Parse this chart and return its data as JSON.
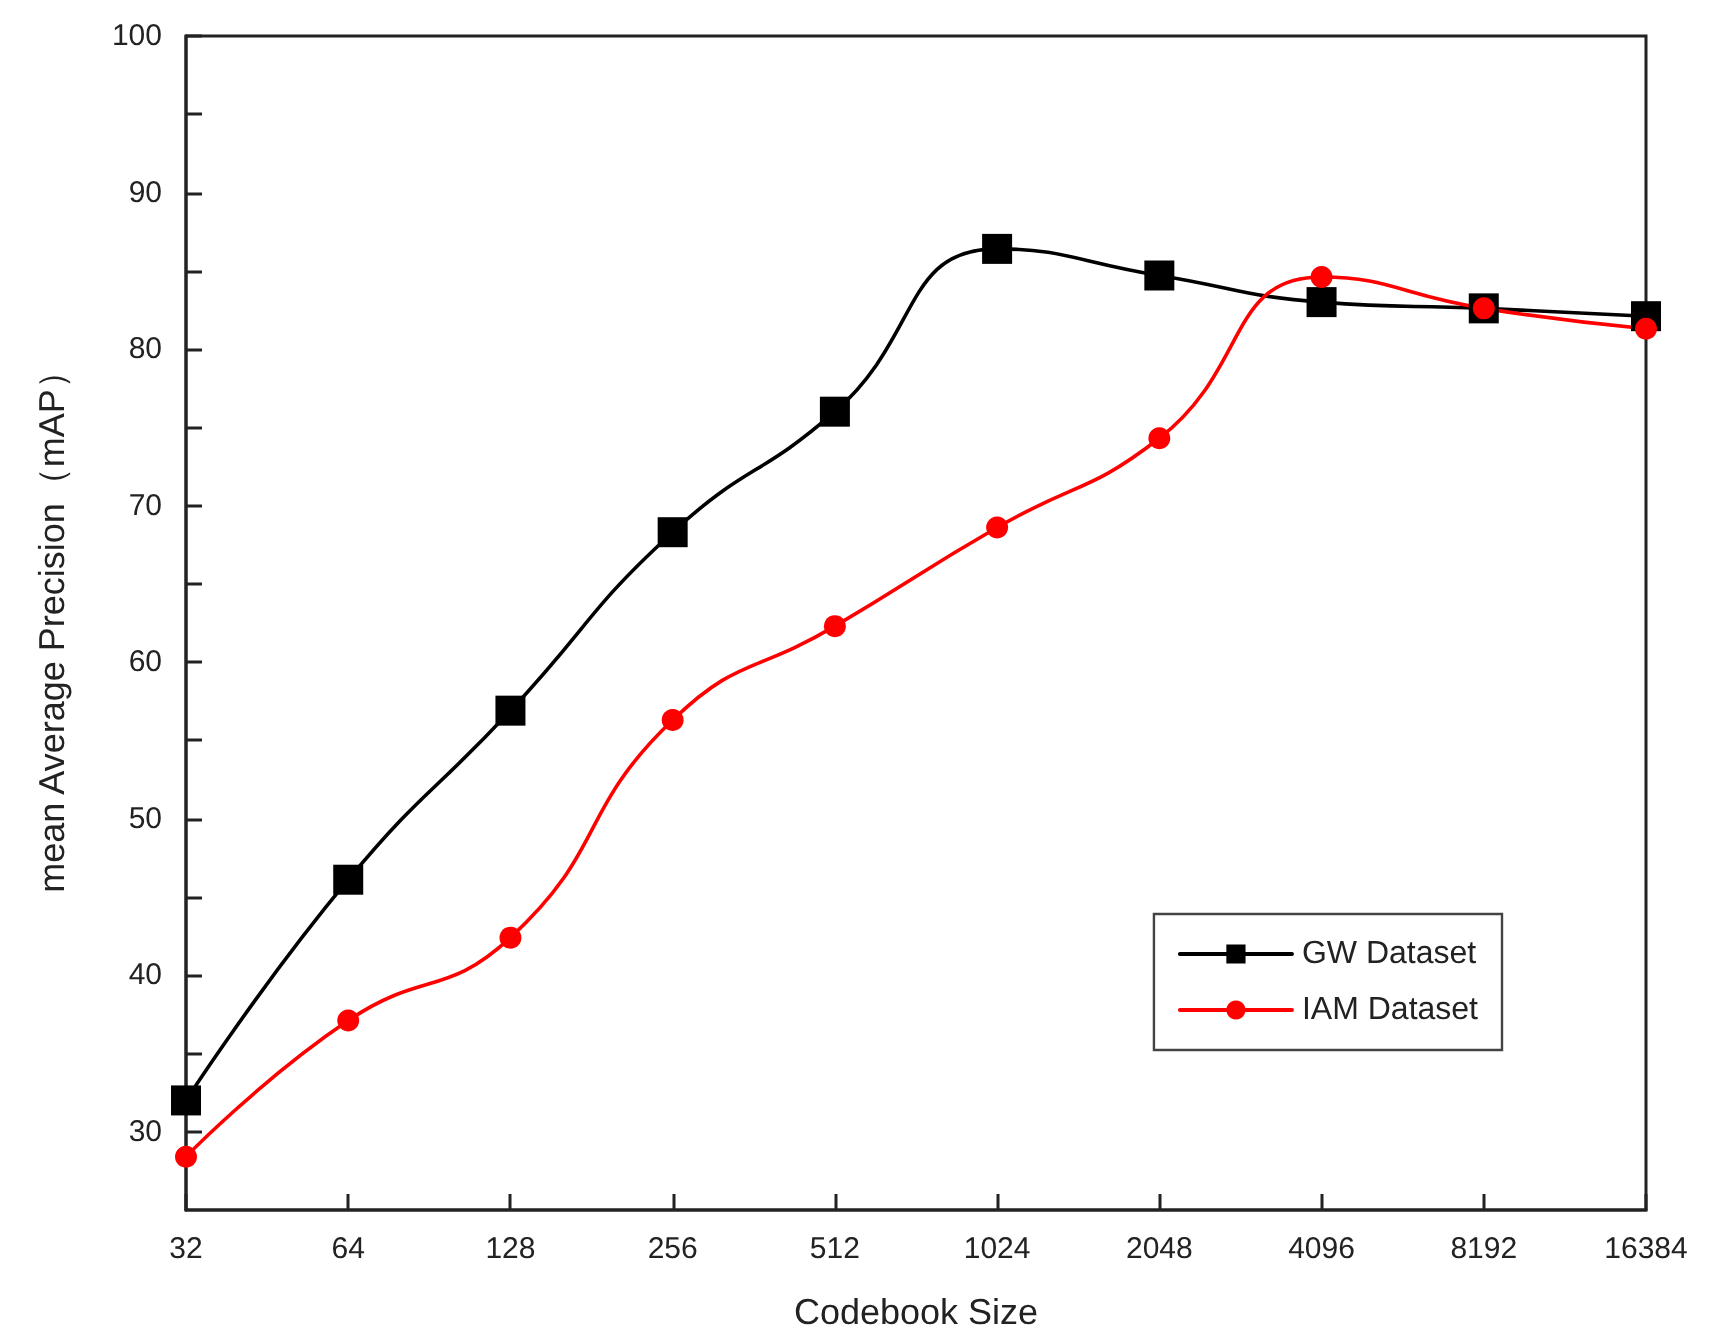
{
  "chart_data": {
    "type": "line",
    "xlabel": "Codebook Size",
    "ylabel": "mean Average Precision（mAP）",
    "categories": [
      "32",
      "64",
      "128",
      "256",
      "512",
      "1024",
      "2048",
      "4096",
      "8192",
      "16384"
    ],
    "series": [
      {
        "name": "GW Dataset",
        "color": "#000000",
        "marker": "square",
        "values": [
          32.0,
          46.1,
          56.9,
          68.3,
          76.0,
          86.4,
          84.7,
          83.0,
          82.6,
          82.1
        ]
      },
      {
        "name": "IAM Dataset",
        "color": "#ff0000",
        "marker": "circle",
        "values": [
          28.4,
          37.1,
          42.4,
          56.3,
          62.3,
          68.6,
          74.3,
          84.6,
          82.6,
          81.3
        ]
      }
    ],
    "ylim": [
      25,
      100
    ],
    "yticks": [
      30,
      {
        "value": 35,
        "label": null
      },
      40,
      {
        "value": 45,
        "label": null
      },
      50,
      {
        "value": 55,
        "label": null
      },
      60,
      {
        "value": 65,
        "label": null
      },
      70,
      {
        "value": 75,
        "label": null
      },
      80,
      {
        "value": 85,
        "label": null
      },
      90,
      {
        "value": 95,
        "label": null
      },
      100
    ],
    "grid": false,
    "legend": "bottom right",
    "line_style": "solid"
  }
}
